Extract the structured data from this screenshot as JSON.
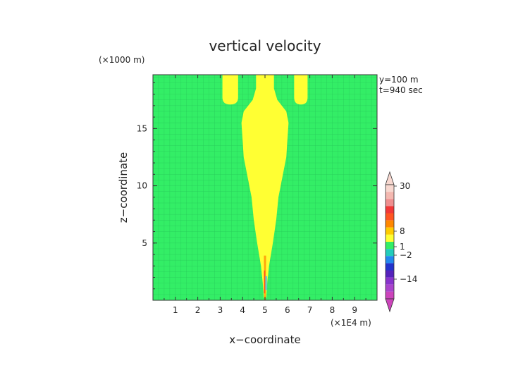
{
  "chart_data": {
    "type": "heatmap",
    "title": "vertical velocity",
    "xlabel": "x−coordinate",
    "ylabel": "z−coordinate",
    "x_unit": "(×1E4 m)",
    "y_unit": "(×1000 m)",
    "annotations": [
      "y=100 m",
      "t=940 sec"
    ],
    "xlim": [
      0,
      10
    ],
    "ylim": [
      0,
      19.7
    ],
    "x_ticks": [
      "1",
      "2",
      "3",
      "4",
      "5",
      "6",
      "7",
      "8",
      "9"
    ],
    "y_ticks": [
      "5",
      "10",
      "15"
    ],
    "grid": true,
    "background_level_color": "#33ee66",
    "plume_color": "#ffff33",
    "core_colors": [
      "#ff8800",
      "#ff3322",
      "#33bbff"
    ],
    "plume_right_edge": [
      [
        0.2,
        5.05
      ],
      [
        1.5,
        5.1
      ],
      [
        3,
        5.18
      ],
      [
        5,
        5.35
      ],
      [
        7,
        5.5
      ],
      [
        9,
        5.6
      ],
      [
        11,
        5.8
      ],
      [
        12.5,
        5.95
      ],
      [
        14,
        6.0
      ],
      [
        15.5,
        6.05
      ],
      [
        16.5,
        5.95
      ],
      [
        17.5,
        5.55
      ],
      [
        18.5,
        5.4
      ],
      [
        19.7,
        5.4
      ]
    ],
    "side_lobes": [
      {
        "x_left": 3.1,
        "x_right": 3.8,
        "z_bottom": 17.1
      },
      {
        "x_left": 6.3,
        "x_right": 6.9,
        "z_bottom": 17.1
      }
    ],
    "colorbar": {
      "labels": [
        "30",
        "8",
        "1",
        "−2",
        "−14"
      ],
      "label_values": [
        30,
        8,
        1,
        -2,
        -14
      ],
      "bands": [
        {
          "color": "#f8d8d0"
        },
        {
          "color": "#f4b8b0"
        },
        {
          "color": "#ef8f8f"
        },
        {
          "color": "#f23838"
        },
        {
          "color": "#ff5522"
        },
        {
          "color": "#ff8800"
        },
        {
          "color": "#ffcc00"
        },
        {
          "color": "#ffff33"
        },
        {
          "color": "#33ee66"
        },
        {
          "color": "#22ccbb"
        },
        {
          "color": "#2288ee"
        },
        {
          "color": "#2233cc"
        },
        {
          "color": "#5522bb"
        },
        {
          "color": "#8833cc"
        },
        {
          "color": "#aa44cc"
        },
        {
          "color": "#cc44bb"
        }
      ]
    }
  }
}
